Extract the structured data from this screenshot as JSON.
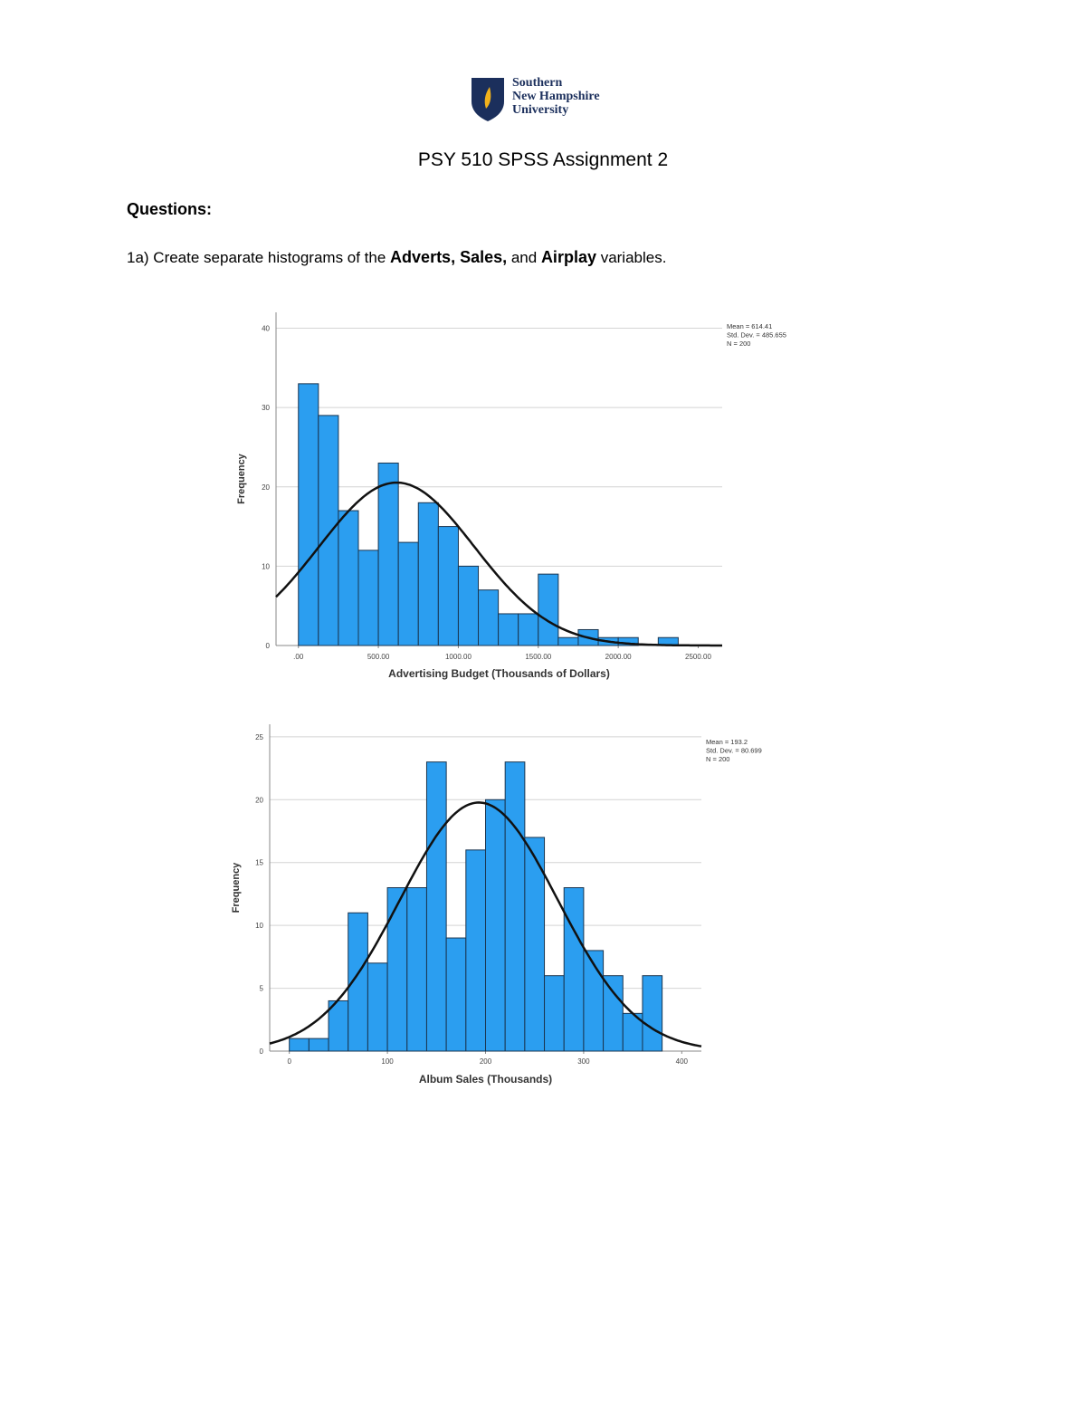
{
  "logo": {
    "lines": [
      "Southern",
      "New Hampshire",
      "University"
    ]
  },
  "title": "PSY 510 SPSS Assignment 2",
  "heading": "Questions:",
  "question": {
    "segments": [
      {
        "text": "1a) Create separate histograms of the ",
        "bold": false
      },
      {
        "text": "Adverts, Sales,",
        "bold": true
      },
      {
        "text": " and ",
        "bold": false
      },
      {
        "text": "Airplay",
        "bold": true
      },
      {
        "text": " variables.",
        "bold": false
      }
    ]
  },
  "chart_data": [
    {
      "type": "histogram",
      "x_label": "Advertising Budget (Thousands of Dollars)",
      "y_label": "Frequency",
      "bins": [
        0,
        125,
        250,
        375,
        500,
        625,
        750,
        875,
        1000,
        1125,
        1250,
        1375,
        1500,
        1625,
        1750,
        1875,
        2000,
        2125,
        2250,
        2375
      ],
      "counts": [
        33,
        29,
        17,
        12,
        23,
        13,
        18,
        15,
        10,
        7,
        4,
        4,
        9,
        1,
        2,
        1,
        1,
        0,
        1
      ],
      "color": "#2b9ef0",
      "xlim": [
        -140,
        2650
      ],
      "xticks": [
        {
          "value": 0,
          "label": ".00"
        },
        {
          "value": 500,
          "label": "500.00"
        },
        {
          "value": 1000,
          "label": "1000.00"
        },
        {
          "value": 1500,
          "label": "1500.00"
        },
        {
          "value": 2000,
          "label": "2000.00"
        },
        {
          "value": 2500,
          "label": "2500.00"
        }
      ],
      "ylim": [
        0,
        42
      ],
      "yticks": [
        0,
        10,
        20,
        30,
        40
      ],
      "grid": true,
      "stats": [
        {
          "value": 614.41,
          "label": "Mean = 614.41"
        },
        {
          "value": 485.655,
          "label": "Std. Dev. = 485.655"
        },
        {
          "value": 200,
          "label": "N = 200"
        }
      ]
    },
    {
      "type": "histogram",
      "x_label": "Album Sales (Thousands)",
      "y_label": "Frequency",
      "bins": [
        0,
        20,
        40,
        60,
        80,
        100,
        120,
        140,
        160,
        180,
        200,
        220,
        240,
        260,
        280,
        300,
        320,
        340,
        360,
        380
      ],
      "counts": [
        1,
        1,
        4,
        11,
        7,
        13,
        13,
        23,
        9,
        16,
        20,
        23,
        17,
        6,
        13,
        8,
        6,
        3,
        6
      ],
      "color": "#2b9ef0",
      "xlim": [
        -20,
        420
      ],
      "xticks": [
        0,
        100,
        200,
        300,
        400
      ],
      "ylim": [
        0,
        26
      ],
      "yticks": [
        0,
        5,
        10,
        15,
        20,
        25
      ],
      "grid": true,
      "stats": [
        {
          "value": 193.2,
          "label": "Mean = 193.2"
        },
        {
          "value": 80.699,
          "label": "Std. Dev. = 80.699"
        },
        {
          "value": 200,
          "label": "N = 200"
        }
      ]
    }
  ]
}
